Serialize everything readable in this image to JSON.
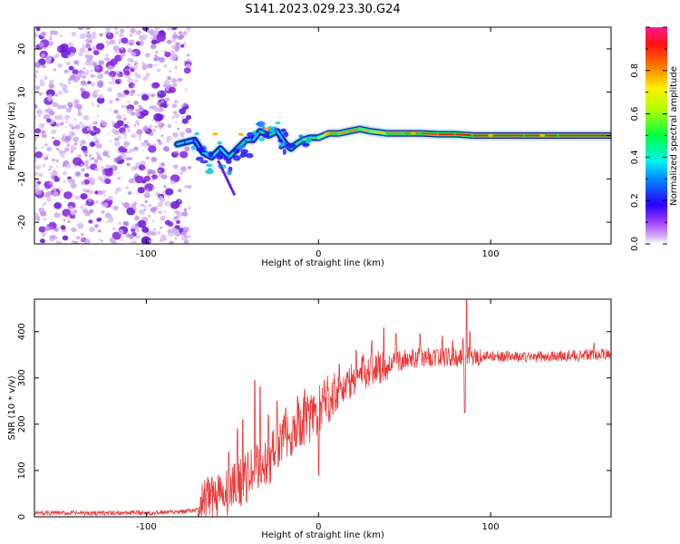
{
  "title": "S141.2023.029.23.30.G24",
  "chart_data": [
    {
      "type": "heatmap",
      "name": "spectrogram",
      "xlabel": "Height of straight line (km)",
      "ylabel": "Frequency (Hz)",
      "xlim": [
        -165,
        170
      ],
      "ylim": [
        -25,
        25
      ],
      "xticks": [
        -100,
        0,
        100
      ],
      "yticks": [
        -20,
        -10,
        0,
        10,
        20
      ],
      "xtick_labels": [
        "-100",
        "0",
        "100"
      ],
      "ytick_labels": [
        "-20",
        "-10",
        "0",
        "10",
        "20"
      ],
      "noise_region_x": [
        -165,
        -77
      ],
      "ridge": {
        "x": [
          -82,
          -77,
          -72,
          -67,
          -62,
          -57,
          -52,
          -47,
          -42,
          -38,
          -34,
          -29,
          -24,
          -19,
          -16,
          -13,
          -9,
          -5,
          0,
          6,
          12,
          18,
          24,
          30,
          40,
          50,
          60,
          70,
          80,
          90,
          100,
          120,
          140,
          170
        ],
        "freq": [
          -2,
          -1.5,
          -1,
          -4,
          -5,
          -3,
          -5,
          -3,
          -1,
          -1,
          1,
          0,
          1,
          -2,
          -3,
          -2,
          -1,
          -0.5,
          -0.5,
          0.5,
          0.5,
          1,
          1.5,
          1,
          0.5,
          0.5,
          0.5,
          0.3,
          0.3,
          0,
          0,
          0,
          0,
          0
        ],
        "amplitude": [
          0.35,
          0.5,
          0.3,
          0.35,
          0.4,
          0.45,
          0.35,
          0.5,
          0.45,
          0.4,
          0.35,
          0.6,
          0.4,
          0.35,
          0.5,
          0.45,
          0.6,
          0.55,
          0.5,
          0.85,
          0.8,
          0.8,
          0.85,
          0.7,
          0.8,
          0.85,
          0.85,
          0.9,
          0.9,
          0.95,
          0.95,
          0.95,
          0.95,
          0.95
        ]
      }
    },
    {
      "type": "colorbar",
      "label": "Normalized spectral amplitude",
      "range": [
        0,
        1
      ],
      "ticks": [
        0.0,
        0.2,
        0.4,
        0.6,
        0.8
      ],
      "tick_labels": [
        "0.0",
        "0.2",
        "0.4",
        "0.6",
        "0.8"
      ]
    },
    {
      "type": "line",
      "name": "snr",
      "xlabel": "Height of straight line (km)",
      "ylabel": "SNR (10 * v/v)",
      "xlim": [
        -165,
        170
      ],
      "ylim": [
        0,
        470
      ],
      "xticks": [
        -100,
        0,
        100
      ],
      "yticks": [
        0,
        100,
        200,
        300,
        400
      ],
      "xtick_labels": [
        "-100",
        "0",
        "100"
      ],
      "ytick_labels": [
        "0",
        "100",
        "200",
        "300",
        "400"
      ],
      "color": "#e83a3a",
      "trend": {
        "x": [
          -165,
          -120,
          -80,
          -70,
          -65,
          -60,
          -55,
          -50,
          -45,
          -40,
          -35,
          -30,
          -25,
          -20,
          -15,
          -10,
          -5,
          0,
          5,
          10,
          15,
          20,
          25,
          30,
          40,
          50,
          60,
          70,
          80,
          90,
          100,
          120,
          140,
          160,
          170
        ],
        "y": [
          8,
          8,
          10,
          15,
          30,
          50,
          40,
          60,
          75,
          90,
          110,
          115,
          145,
          170,
          185,
          200,
          215,
          225,
          255,
          270,
          280,
          295,
          310,
          320,
          330,
          340,
          345,
          345,
          345,
          345,
          348,
          345,
          347,
          350,
          352
        ]
      },
      "spikes": {
        "x": [
          -62,
          -52,
          -47,
          -44,
          -37,
          -34,
          -29,
          -24,
          -19,
          -12,
          -8,
          0,
          5,
          12,
          22,
          31,
          38,
          45,
          59,
          72,
          78,
          84,
          85,
          86,
          88,
          160
        ],
        "y": [
          85,
          140,
          190,
          210,
          295,
          280,
          220,
          250,
          235,
          260,
          275,
          90,
          280,
          330,
          360,
          380,
          408,
          395,
          395,
          390,
          380,
          385,
          225,
          468,
          400,
          375
        ]
      }
    }
  ]
}
